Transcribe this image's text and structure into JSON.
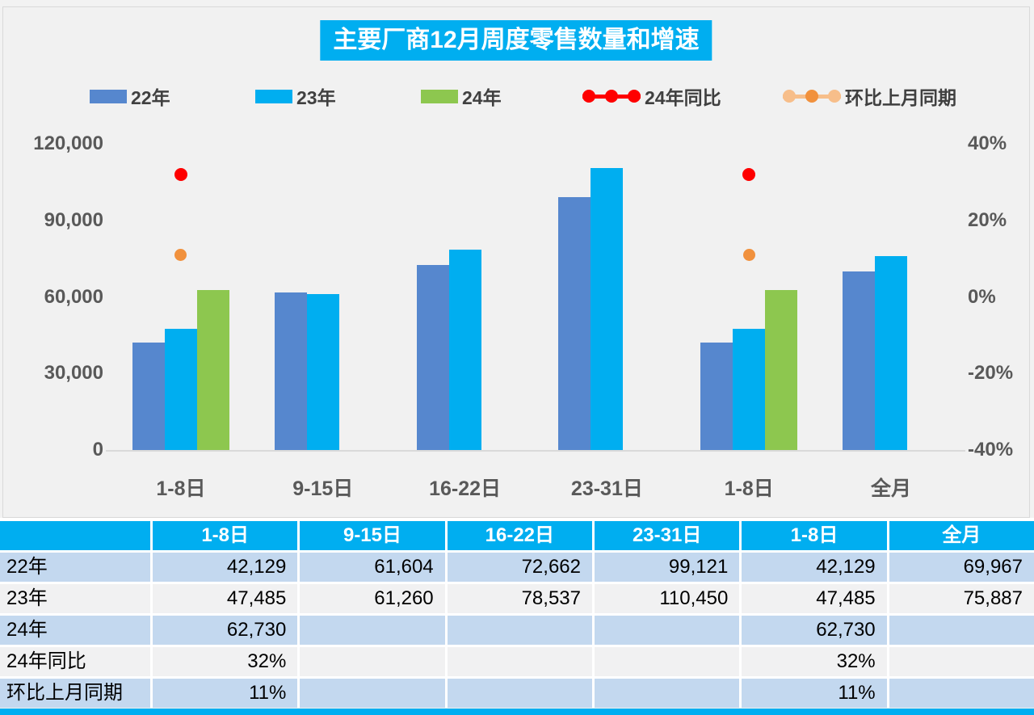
{
  "title": "主要厂商12月周度零售数量和增速",
  "colors": {
    "accent_cyan": "#00AEF0",
    "bar_22": "#5687CE",
    "bar_23": "#00AEF0",
    "bar_24": "#8DC74F",
    "line_yoy": "#FE0000",
    "line_mom": "#F79646",
    "line_mom_light": "#F7BE8A",
    "row_shade": "#C3D8EF",
    "row_plain": "#F1F1F2",
    "axis_text": "#595959",
    "baseline": "#D9D9D9"
  },
  "legend": [
    {
      "label": "22年",
      "type": "bar",
      "color": "#5687CE"
    },
    {
      "label": "23年",
      "type": "bar",
      "color": "#00AEF0"
    },
    {
      "label": "24年",
      "type": "bar",
      "color": "#8DC74F"
    },
    {
      "label": "24年同比",
      "type": "line",
      "line_color": "#FE0000",
      "dot_colors": [
        "#FE0000",
        "#FE0000",
        "#FE0000"
      ]
    },
    {
      "label": "环比上月同期",
      "type": "line",
      "line_color": "#F7BE8A",
      "dot_colors": [
        "#F7BE8A",
        "#F1913D",
        "#F7BE8A"
      ]
    }
  ],
  "chart_data": {
    "type": "bar",
    "title": "主要厂商12月周度零售数量和增速",
    "categories": [
      "1-8日",
      "9-15日",
      "16-22日",
      "23-31日",
      "1-8日",
      "全月"
    ],
    "bar_series": [
      {
        "name": "22年",
        "color": "#5687CE",
        "values": [
          42129,
          61604,
          72662,
          99121,
          42129,
          69967
        ]
      },
      {
        "name": "23年",
        "color": "#00AEF0",
        "values": [
          47485,
          61260,
          78537,
          110450,
          47485,
          75887
        ]
      },
      {
        "name": "24年",
        "color": "#8DC74F",
        "values": [
          62730,
          null,
          null,
          null,
          62730,
          null
        ]
      }
    ],
    "point_series": [
      {
        "name": "24年同比",
        "color": "#FE0000",
        "size": 16,
        "values": [
          32,
          null,
          null,
          null,
          32,
          null
        ]
      },
      {
        "name": "环比上月同期",
        "color": "#F1913D",
        "size": 15,
        "values": [
          11,
          null,
          null,
          null,
          11,
          null
        ]
      }
    ],
    "left_axis": {
      "label": "",
      "min": 0,
      "max": 120000,
      "ticks": [
        "120,000",
        "90,000",
        "60,000",
        "30,000",
        "0"
      ]
    },
    "right_axis": {
      "label": "",
      "min": -40,
      "max": 40,
      "ticks": [
        "40%",
        "20%",
        "0%",
        "-20%",
        "-40%"
      ]
    },
    "grid": false,
    "legend_position": "top"
  },
  "table": {
    "headers": [
      "",
      "1-8日",
      "9-15日",
      "16-22日",
      "23-31日",
      "1-8日",
      "全月"
    ],
    "rows": [
      {
        "label": "22年",
        "shade": true,
        "cells": [
          "42,129",
          "61,604",
          "72,662",
          "99,121",
          "42,129",
          "69,967"
        ]
      },
      {
        "label": "23年",
        "shade": false,
        "cells": [
          "47,485",
          "61,260",
          "78,537",
          "110,450",
          "47,485",
          "75,887"
        ]
      },
      {
        "label": "24年",
        "shade": true,
        "cells": [
          "62,730",
          "",
          "",
          "",
          "62,730",
          ""
        ]
      },
      {
        "label": "24年同比",
        "shade": false,
        "cells": [
          "32%",
          "",
          "",
          "",
          "32%",
          ""
        ]
      },
      {
        "label": "环比上月同期",
        "shade": true,
        "cells": [
          "11%",
          "",
          "",
          "",
          "11%",
          ""
        ]
      }
    ]
  }
}
